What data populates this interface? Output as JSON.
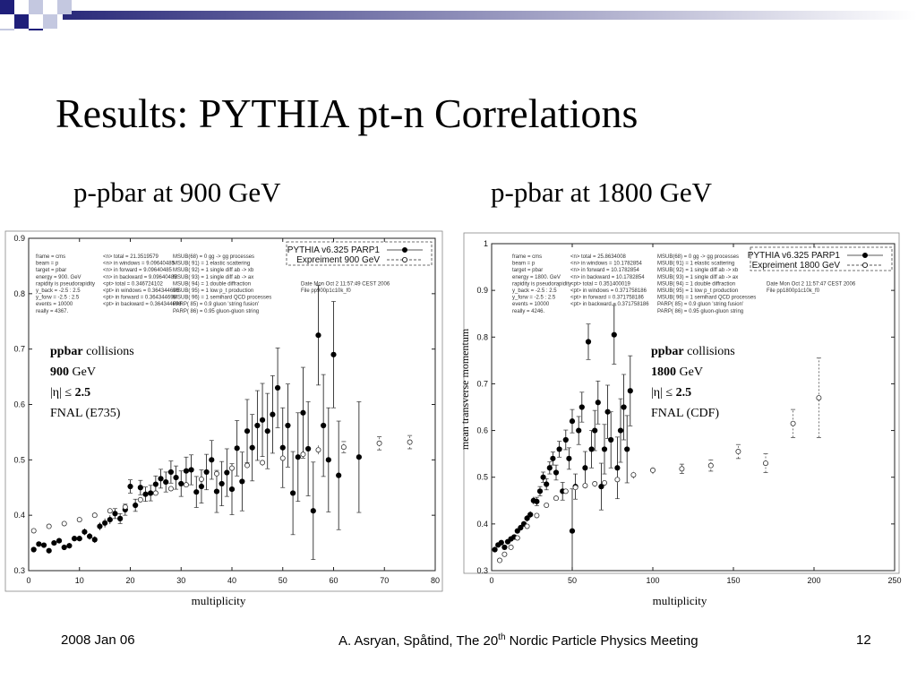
{
  "slide": {
    "title": "Results: PYTHIA pt-n Correlations",
    "subtitle_left": "p-pbar at 900 GeV",
    "subtitle_right": "p-pbar at 1800 GeV",
    "colors": {
      "deco_navy": "#1f1f7a",
      "deco_light": "#c4c8e0",
      "bar_start": "#2a2a7a",
      "bar_end": "#ffffff"
    }
  },
  "footer": {
    "date": "2008 Jan 06",
    "credit_pre": "A. Asryan, Spåtind, The 20",
    "credit_sup": "th",
    "credit_post": " Nordic Particle Physics Meeting",
    "page": "12"
  },
  "annotation_left": {
    "l1_bold": "ppbar",
    "l1_rest": " collisions",
    "l2_bold": "900",
    "l2_rest": " GeV",
    "l3_pre": "|η| ≤ ",
    "l3_bold": "2.5",
    "l4": "FNAL (E735)"
  },
  "annotation_right": {
    "l1_bold": "ppbar",
    "l1_rest": " collisions",
    "l2_bold": "1800",
    "l2_rest": " GeV",
    "l3_pre": "|η| ≤ ",
    "l3_bold": "2.5",
    "l4": "FNAL (CDF)"
  },
  "chart_data": [
    {
      "type": "scatter",
      "title": "",
      "xlabel": "multiplicity",
      "ylabel": "",
      "xlim": [
        0,
        80
      ],
      "ylim": [
        0.3,
        0.9
      ],
      "xticks": [
        0,
        10,
        20,
        30,
        40,
        50,
        60,
        70,
        80
      ],
      "yticks": [
        0.3,
        0.4,
        0.5,
        0.6,
        0.7,
        0.8,
        0.9
      ],
      "legend_position": "top-right",
      "grid": false,
      "info_text": [
        "frame = cms",
        "beam = p",
        "target = pbar",
        "energy = 900. GeV",
        "rapidity is pseudorapidity",
        "y_back = -2.5 : 2.5",
        "y_forw = -2.5 : 2.5",
        "events = 10000",
        "really = 4367.",
        "<n> total = 21.3519579",
        "<n> in windows = 9.09640485",
        "<n> in forward = 9.09640485",
        "<n> in backward = 9.09640485",
        "<pt> total = 0.346724102",
        "<pt> in windows = 0.364344698",
        "<pt> in forward = 0.364344698",
        "<pt> in backward = 0.364344698",
        "MSUB(68) = 0 gg -> gg processes",
        "MSUB( 91) = 1 elastic scattering",
        "MSUB( 92) = 1 single diff ab -> xb",
        "MSUB( 93) = 1 single diff ab -> ax",
        "MSUB( 94) = 1 double diffraction",
        "MSUB( 95) = 1 low p_t production",
        "MSUB( 96) = 1 semihard QCD processes",
        "PARP( 85) = 0.9 gluon 'string fusion'",
        "PARP( 86) = 0.95 gluon-gluon string",
        "Date Mon Oct 2 11:57:49 CEST 2006",
        "File pp900p1c10k_f0"
      ],
      "series": [
        {
          "name": "PYTHIA v6.325 PARP1",
          "marker": "filled",
          "points": [
            [
              1,
              0.338,
              0.004
            ],
            [
              2,
              0.348,
              0.004
            ],
            [
              3,
              0.346,
              0.004
            ],
            [
              4,
              0.336,
              0.004
            ],
            [
              5,
              0.35,
              0.004
            ],
            [
              6,
              0.354,
              0.004
            ],
            [
              7,
              0.342,
              0.004
            ],
            [
              8,
              0.345,
              0.005
            ],
            [
              9,
              0.358,
              0.005
            ],
            [
              10,
              0.358,
              0.005
            ],
            [
              11,
              0.37,
              0.006
            ],
            [
              12,
              0.362,
              0.006
            ],
            [
              13,
              0.356,
              0.006
            ],
            [
              14,
              0.38,
              0.007
            ],
            [
              15,
              0.386,
              0.008
            ],
            [
              16,
              0.392,
              0.008
            ],
            [
              17,
              0.403,
              0.009
            ],
            [
              18,
              0.394,
              0.009
            ],
            [
              19,
              0.41,
              0.01
            ],
            [
              20,
              0.452,
              0.012
            ],
            [
              21,
              0.418,
              0.011
            ],
            [
              22,
              0.45,
              0.013
            ],
            [
              23,
              0.438,
              0.013
            ],
            [
              24,
              0.44,
              0.014
            ],
            [
              25,
              0.456,
              0.015
            ],
            [
              26,
              0.466,
              0.017
            ],
            [
              27,
              0.46,
              0.018
            ],
            [
              28,
              0.478,
              0.02
            ],
            [
              29,
              0.468,
              0.021
            ],
            [
              30,
              0.457,
              0.023
            ],
            [
              31,
              0.48,
              0.025
            ],
            [
              32,
              0.482,
              0.027
            ],
            [
              33,
              0.442,
              0.028
            ],
            [
              34,
              0.452,
              0.03
            ],
            [
              35,
              0.478,
              0.032
            ],
            [
              36,
              0.5,
              0.035
            ],
            [
              37,
              0.443,
              0.038
            ],
            [
              38,
              0.457,
              0.04
            ],
            [
              39,
              0.477,
              0.043
            ],
            [
              40,
              0.447,
              0.046
            ],
            [
              41,
              0.521,
              0.05
            ],
            [
              42,
              0.461,
              0.053
            ],
            [
              43,
              0.552,
              0.057
            ],
            [
              44,
              0.522,
              0.06
            ],
            [
              45,
              0.562,
              0.063
            ],
            [
              46,
              0.572,
              0.066
            ],
            [
              47,
              0.552,
              0.068
            ],
            [
              48,
              0.582,
              0.07
            ],
            [
              49,
              0.63,
              0.072
            ],
            [
              50,
              0.522,
              0.072
            ],
            [
              51,
              0.562,
              0.075
            ],
            [
              52,
              0.44,
              0.075
            ],
            [
              53,
              0.505,
              0.08
            ],
            [
              54,
              0.585,
              0.082
            ],
            [
              55,
              0.52,
              0.085
            ],
            [
              56,
              0.408,
              0.088
            ],
            [
              57,
              0.725,
              0.09
            ],
            [
              58,
              0.562,
              0.092
            ],
            [
              59,
              0.5,
              0.094
            ],
            [
              60,
              0.69,
              0.096
            ],
            [
              61,
              0.472,
              0.098
            ],
            [
              65,
              0.505,
              0.1
            ]
          ]
        },
        {
          "name": "Expreiment 900 GeV",
          "marker": "open",
          "points": [
            [
              1,
              0.372,
              0.003
            ],
            [
              4,
              0.38,
              0.003
            ],
            [
              7,
              0.385,
              0.003
            ],
            [
              10,
              0.392,
              0.003
            ],
            [
              13,
              0.4,
              0.003
            ],
            [
              16,
              0.408,
              0.003
            ],
            [
              19,
              0.415,
              0.003
            ],
            [
              22,
              0.428,
              0.003
            ],
            [
              25,
              0.44,
              0.004
            ],
            [
              28,
              0.448,
              0.004
            ],
            [
              31,
              0.455,
              0.004
            ],
            [
              34,
              0.465,
              0.004
            ],
            [
              37,
              0.475,
              0.005
            ],
            [
              40,
              0.485,
              0.005
            ],
            [
              43,
              0.49,
              0.005
            ],
            [
              46,
              0.495,
              0.006
            ],
            [
              50,
              0.503,
              0.006
            ],
            [
              54,
              0.51,
              0.007
            ],
            [
              57,
              0.518,
              0.008
            ],
            [
              62,
              0.523,
              0.01
            ],
            [
              69,
              0.53,
              0.012
            ],
            [
              75,
              0.532,
              0.012
            ]
          ]
        }
      ]
    },
    {
      "type": "scatter",
      "title": "",
      "xlabel": "multiplicity",
      "ylabel": "mean transverse momentum",
      "xlim": [
        0,
        250
      ],
      "ylim": [
        0.3,
        1.0
      ],
      "xticks": [
        0,
        50,
        100,
        150,
        200,
        250
      ],
      "yticks": [
        0.3,
        0.4,
        0.5,
        0.6,
        0.7,
        0.8,
        0.9,
        1
      ],
      "legend_position": "top-right",
      "grid": false,
      "info_text": [
        "frame = cms",
        "beam = p",
        "target = pbar",
        "energy = 1800. GeV",
        "rapidity is pseudorapidity",
        "y_back = -2.5 : 2.5",
        "y_forw = -2.5 : 2.5",
        "events = 10000",
        "really = 4246.",
        "<n> total = 25.8634008",
        "<n> in windows = 10.1782854",
        "<n> in forward = 10.1782854",
        "<n> in backward = 10.1782854",
        "<pt> total = 0.351400019",
        "<pt> in windows = 0.371758186",
        "<pt> in forward = 0.371758186",
        "<pt> in backward = 0.371758186",
        "MSUB(68) = 0 gg -> gg processes",
        "MSUB( 91) = 1 elastic scattering",
        "MSUB( 92) = 1 single diff ab -> xb",
        "MSUB( 93) = 1 single diff ab -> ax",
        "MSUB( 94) = 1 double diffraction",
        "MSUB( 95) = 1 low p_t production",
        "MSUB( 96) = 1 semihard QCD processes",
        "PARP( 85) = 0.9 gluon 'string fusion'",
        "PARP( 86) = 0.95 gluon-gluon string",
        "Date Mon Oct 2 11:57:47 CEST 2006",
        "File pp1800p1c10k_f0"
      ],
      "series": [
        {
          "name": "PYTHIA v6.325 PARP1",
          "marker": "filled",
          "points": [
            [
              2,
              0.345,
              0.004
            ],
            [
              4,
              0.355,
              0.004
            ],
            [
              6,
              0.36,
              0.004
            ],
            [
              8,
              0.35,
              0.004
            ],
            [
              10,
              0.362,
              0.004
            ],
            [
              12,
              0.368,
              0.005
            ],
            [
              14,
              0.372,
              0.005
            ],
            [
              16,
              0.385,
              0.005
            ],
            [
              18,
              0.392,
              0.006
            ],
            [
              20,
              0.4,
              0.006
            ],
            [
              22,
              0.412,
              0.007
            ],
            [
              24,
              0.42,
              0.007
            ],
            [
              26,
              0.45,
              0.008
            ],
            [
              28,
              0.448,
              0.009
            ],
            [
              30,
              0.47,
              0.01
            ],
            [
              32,
              0.5,
              0.011
            ],
            [
              34,
              0.485,
              0.012
            ],
            [
              36,
              0.52,
              0.013
            ],
            [
              38,
              0.54,
              0.014
            ],
            [
              40,
              0.51,
              0.016
            ],
            [
              42,
              0.56,
              0.017
            ],
            [
              44,
              0.47,
              0.019
            ],
            [
              46,
              0.58,
              0.021
            ],
            [
              48,
              0.54,
              0.023
            ],
            [
              50,
              0.62,
              0.025
            ],
            [
              52,
              0.48,
              0.027
            ],
            [
              54,
              0.6,
              0.03
            ],
            [
              56,
              0.65,
              0.032
            ],
            [
              58,
              0.52,
              0.035
            ],
            [
              60,
              0.79,
              0.038
            ],
            [
              62,
              0.56,
              0.04
            ],
            [
              64,
              0.6,
              0.043
            ],
            [
              66,
              0.66,
              0.046
            ],
            [
              68,
              0.48,
              0.05
            ],
            [
              70,
              0.56,
              0.053
            ],
            [
              72,
              0.64,
              0.057
            ],
            [
              74,
              0.58,
              0.06
            ],
            [
              76,
              0.805,
              0.063
            ],
            [
              78,
              0.52,
              0.066
            ],
            [
              80,
              0.6,
              0.068
            ],
            [
              82,
              0.65,
              0.07
            ],
            [
              84,
              0.56,
              0.072
            ],
            [
              86,
              0.685,
              0.075
            ],
            [
              50,
              0.385,
              0.09
            ]
          ]
        },
        {
          "name": "Expreiment 1800 GeV",
          "marker": "open",
          "points": [
            [
              5,
              0.322,
              0.003
            ],
            [
              8,
              0.335,
              0.003
            ],
            [
              12,
              0.35,
              0.003
            ],
            [
              16,
              0.37,
              0.003
            ],
            [
              22,
              0.395,
              0.004
            ],
            [
              28,
              0.418,
              0.004
            ],
            [
              34,
              0.44,
              0.004
            ],
            [
              40,
              0.455,
              0.005
            ],
            [
              46,
              0.47,
              0.005
            ],
            [
              52,
              0.478,
              0.006
            ],
            [
              58,
              0.482,
              0.006
            ],
            [
              64,
              0.486,
              0.007
            ],
            [
              70,
              0.488,
              0.007
            ],
            [
              78,
              0.495,
              0.008
            ],
            [
              88,
              0.505,
              0.008
            ],
            [
              100,
              0.515,
              0.008
            ],
            [
              118,
              0.518,
              0.01
            ],
            [
              136,
              0.525,
              0.012
            ],
            [
              153,
              0.555,
              0.015
            ],
            [
              170,
              0.53,
              0.02
            ],
            [
              187,
              0.615,
              0.03
            ],
            [
              203,
              0.67,
              0.085
            ]
          ]
        }
      ]
    }
  ]
}
